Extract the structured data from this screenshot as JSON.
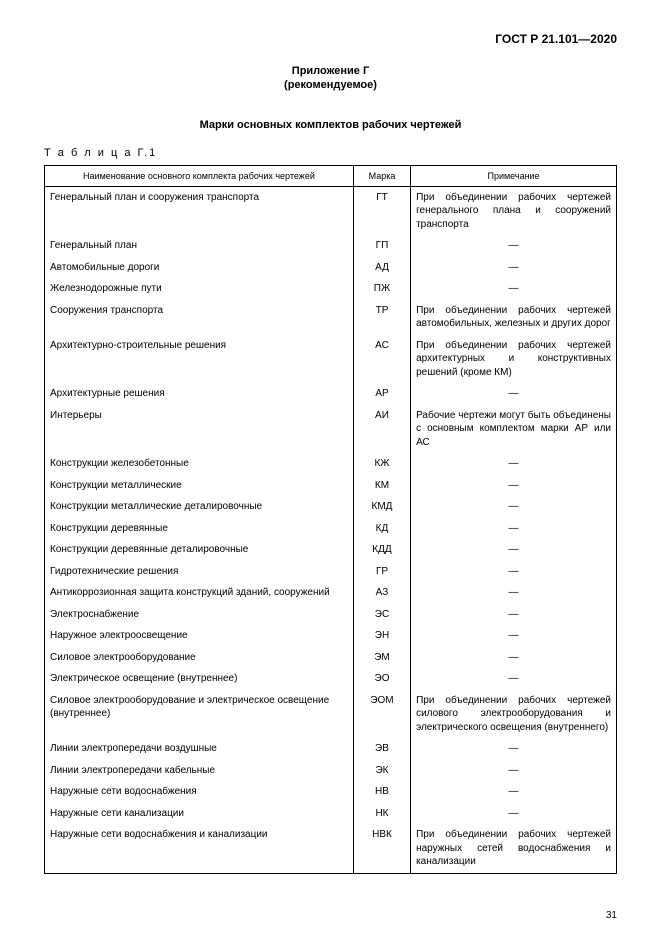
{
  "doc_id": "ГОСТ Р 21.101—2020",
  "appendix": {
    "line1": "Приложение Г",
    "line2": "(рекомендуемое)"
  },
  "section_title": "Марки основных комплектов рабочих чертежей",
  "table_caption": "Т а б л и ц а  Г.1",
  "columns": {
    "name": "Наименование основного комплекта рабочих чертежей",
    "mark": "Марка",
    "note": "Примечание"
  },
  "col_widths": {
    "name": "54%",
    "mark": "10%",
    "note": "36%"
  },
  "rows": [
    {
      "name": "Генеральный план и сооружения транспорта",
      "mark": "ГТ",
      "note": "При объединении рабочих чертежей генерального плана и сооружений транспорта"
    },
    {
      "name": "Генеральный план",
      "mark": "ГП",
      "note": "—"
    },
    {
      "name": "Автомобильные дороги",
      "mark": "АД",
      "note": "—"
    },
    {
      "name": "Железнодорожные пути",
      "mark": "ПЖ",
      "note": "—"
    },
    {
      "name": "Сооружения транспорта",
      "mark": "ТР",
      "note": "При объединении рабочих чертежей автомобильных, железных и других дорог"
    },
    {
      "name": "Архитектурно-строительные решения",
      "mark": "АС",
      "note": "При объединении рабочих чертежей архитектурных и конструктивных решений (кроме КМ)"
    },
    {
      "name": "Архитектурные решения",
      "mark": "АР",
      "note": "—"
    },
    {
      "name": "Интерьеры",
      "mark": "АИ",
      "note": "Рабочие чертежи могут быть объединены с основным комплектом марки АР или АС"
    },
    {
      "name": "Конструкции железобетонные",
      "mark": "КЖ",
      "note": "—"
    },
    {
      "name": "Конструкции металлические",
      "mark": "КМ",
      "note": "—"
    },
    {
      "name": "Конструкции металлические деталировочные",
      "mark": "КМД",
      "note": "—"
    },
    {
      "name": "Конструкции деревянные",
      "mark": "КД",
      "note": "—"
    },
    {
      "name": "Конструкции деревянные деталировочные",
      "mark": "КДД",
      "note": "—"
    },
    {
      "name": "Гидротехнические решения",
      "mark": "ГР",
      "note": "—"
    },
    {
      "name": "Антикоррозионная защита конструкций зданий, сооружений",
      "mark": "АЗ",
      "note": "—"
    },
    {
      "name": "Электроснабжение",
      "mark": "ЭС",
      "note": "—"
    },
    {
      "name": "Наружное электроосвещение",
      "mark": "ЭН",
      "note": "—"
    },
    {
      "name": "Силовое электрооборудование",
      "mark": "ЭМ",
      "note": "—"
    },
    {
      "name": "Электрическое освещение (внутреннее)",
      "mark": "ЭО",
      "note": "—"
    },
    {
      "name": "Силовое электрооборудование и электрическое освещение (внутреннее)",
      "mark": "ЭОМ",
      "note": "При объединении рабочих чертежей силового электрооборудования и электрического освещения (внутреннего)"
    },
    {
      "name": "Линии электропередачи воздушные",
      "mark": "ЭВ",
      "note": "—"
    },
    {
      "name": "Линии электропередачи кабельные",
      "mark": "ЭК",
      "note": "—"
    },
    {
      "name": "Наружные сети водоснабжения",
      "mark": "НВ",
      "note": "—"
    },
    {
      "name": "Наружные сети канализации",
      "mark": "НК",
      "note": "—"
    },
    {
      "name": "Наружные сети водоснабжения и канализации",
      "mark": "НВК",
      "note": "При объединении рабочих чертежей наружных сетей водоснабжения и канализации"
    }
  ],
  "page_number": "31"
}
